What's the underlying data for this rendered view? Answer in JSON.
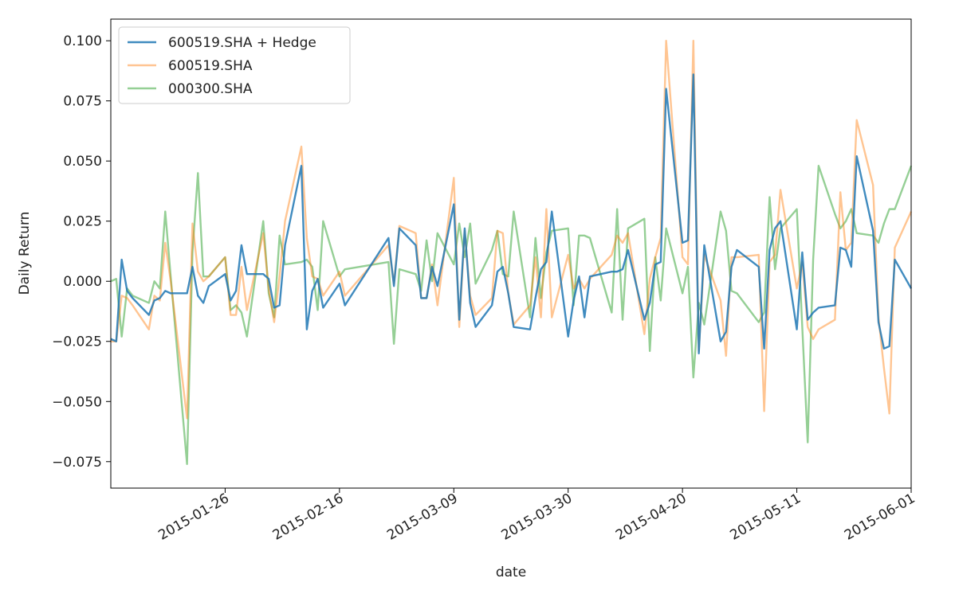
{
  "chart_data": {
    "type": "line",
    "xlabel": "date",
    "ylabel": "Daily Return",
    "xlim": [
      "2015-01-05",
      "2015-06-01"
    ],
    "ylim": [
      -0.086,
      0.109
    ],
    "x_ticks": [
      "2015-01-26",
      "2015-02-16",
      "2015-03-09",
      "2015-03-30",
      "2015-04-20",
      "2015-05-11",
      "2015-06-01"
    ],
    "y_ticks": [
      -0.075,
      -0.05,
      -0.025,
      0.0,
      0.025,
      0.05,
      0.075,
      0.1
    ],
    "y_tick_labels": [
      "−0.075",
      "−0.050",
      "−0.025",
      "0.000",
      "0.025",
      "0.050",
      "0.075",
      "0.100"
    ],
    "grid": false,
    "legend_position": "top-left",
    "dates": [
      "2015-01-05",
      "2015-01-06",
      "2015-01-07",
      "2015-01-08",
      "2015-01-09",
      "2015-01-12",
      "2015-01-13",
      "2015-01-14",
      "2015-01-15",
      "2015-01-16",
      "2015-01-19",
      "2015-01-20",
      "2015-01-21",
      "2015-01-22",
      "2015-01-23",
      "2015-01-26",
      "2015-01-27",
      "2015-01-28",
      "2015-01-29",
      "2015-01-30",
      "2015-02-02",
      "2015-02-03",
      "2015-02-04",
      "2015-02-05",
      "2015-02-06",
      "2015-02-09",
      "2015-02-10",
      "2015-02-11",
      "2015-02-12",
      "2015-02-13",
      "2015-02-16",
      "2015-02-17",
      "2015-02-25",
      "2015-02-26",
      "2015-02-27",
      "2015-03-02",
      "2015-03-03",
      "2015-03-04",
      "2015-03-05",
      "2015-03-06",
      "2015-03-09",
      "2015-03-10",
      "2015-03-11",
      "2015-03-12",
      "2015-03-13",
      "2015-03-16",
      "2015-03-17",
      "2015-03-18",
      "2015-03-19",
      "2015-03-20",
      "2015-03-23",
      "2015-03-24",
      "2015-03-25",
      "2015-03-26",
      "2015-03-27",
      "2015-03-30",
      "2015-03-31",
      "2015-04-01",
      "2015-04-02",
      "2015-04-03",
      "2015-04-07",
      "2015-04-08",
      "2015-04-09",
      "2015-04-10",
      "2015-04-13",
      "2015-04-14",
      "2015-04-15",
      "2015-04-16",
      "2015-04-17",
      "2015-04-20",
      "2015-04-21",
      "2015-04-22",
      "2015-04-23",
      "2015-04-24",
      "2015-04-27",
      "2015-04-28",
      "2015-04-29",
      "2015-04-30",
      "2015-05-04",
      "2015-05-05",
      "2015-05-06",
      "2015-05-07",
      "2015-05-08",
      "2015-05-11",
      "2015-05-12",
      "2015-05-13",
      "2015-05-14",
      "2015-05-15",
      "2015-05-18",
      "2015-05-19",
      "2015-05-20",
      "2015-05-21",
      "2015-05-22",
      "2015-05-25",
      "2015-05-26",
      "2015-05-27",
      "2015-05-28",
      "2015-05-29",
      "2015-06-01"
    ],
    "series": [
      {
        "name": "600519.SHA + Hedge",
        "color": "#1f77b4",
        "opacity": 0.85,
        "values": [
          -0.024,
          -0.025,
          0.009,
          -0.004,
          -0.007,
          -0.014,
          -0.008,
          -0.007,
          -0.004,
          -0.005,
          -0.005,
          0.006,
          -0.006,
          -0.009,
          -0.002,
          0.003,
          -0.008,
          -0.004,
          0.015,
          0.003,
          0.003,
          0.001,
          -0.011,
          -0.01,
          0.015,
          0.048,
          -0.02,
          -0.004,
          0.001,
          -0.011,
          -0.001,
          -0.01,
          0.018,
          -0.002,
          0.022,
          0.015,
          -0.007,
          -0.007,
          0.006,
          -0.002,
          0.032,
          -0.016,
          0.022,
          -0.009,
          -0.019,
          -0.01,
          0.004,
          0.006,
          -0.005,
          -0.019,
          -0.02,
          -0.007,
          0.005,
          0.008,
          0.029,
          -0.023,
          -0.008,
          0.002,
          -0.015,
          0.002,
          0.004,
          0.004,
          0.005,
          0.013,
          -0.016,
          -0.009,
          0.007,
          0.008,
          0.08,
          0.016,
          0.017,
          0.086,
          -0.03,
          0.015,
          -0.025,
          -0.021,
          0.006,
          0.013,
          0.006,
          -0.028,
          0.013,
          0.022,
          0.025,
          -0.02,
          0.012,
          -0.016,
          -0.013,
          -0.011,
          -0.01,
          0.014,
          0.013,
          0.006,
          0.052,
          0.021,
          -0.017,
          -0.028,
          -0.027,
          0.009,
          -0.003
        ]
      },
      {
        "name": "600519.SHA",
        "color": "#ff7f0e",
        "opacity": 0.45,
        "values": [
          -0.025,
          -0.025,
          -0.006,
          -0.007,
          -0.01,
          -0.02,
          -0.006,
          -0.008,
          0.016,
          0.0,
          -0.057,
          0.024,
          0.004,
          0.0,
          0.002,
          0.01,
          -0.014,
          -0.014,
          0.006,
          -0.012,
          0.02,
          -0.003,
          -0.017,
          0.002,
          0.025,
          0.056,
          0.018,
          0.002,
          0.001,
          -0.006,
          0.004,
          -0.006,
          0.015,
          -0.001,
          0.023,
          0.02,
          -0.007,
          -0.007,
          0.007,
          -0.01,
          0.043,
          -0.019,
          0.021,
          -0.006,
          -0.014,
          -0.007,
          0.021,
          0.02,
          -0.005,
          -0.018,
          -0.01,
          0.01,
          -0.015,
          0.03,
          -0.015,
          0.011,
          -0.003,
          0.001,
          -0.003,
          0.001,
          0.011,
          0.019,
          0.016,
          0.02,
          -0.022,
          0.001,
          0.01,
          0.018,
          0.1,
          0.01,
          0.007,
          0.1,
          -0.029,
          0.011,
          -0.008,
          -0.031,
          0.01,
          0.01,
          0.011,
          -0.054,
          0.008,
          0.011,
          0.038,
          -0.003,
          0.008,
          -0.019,
          -0.024,
          -0.02,
          -0.016,
          0.037,
          0.013,
          0.016,
          0.067,
          0.04,
          -0.015,
          -0.036,
          -0.055,
          0.014,
          0.029
        ]
      },
      {
        "name": "000300.SHA",
        "color": "#2ca02c",
        "opacity": 0.5,
        "values": [
          0.0,
          0.001,
          -0.023,
          -0.003,
          -0.006,
          -0.009,
          0.0,
          -0.003,
          0.029,
          0.002,
          -0.076,
          0.012,
          0.045,
          0.002,
          0.002,
          0.01,
          -0.012,
          -0.01,
          -0.013,
          -0.023,
          0.025,
          -0.005,
          -0.015,
          0.019,
          0.007,
          0.008,
          0.009,
          0.006,
          -0.012,
          0.025,
          0.002,
          0.005,
          0.008,
          -0.026,
          0.005,
          0.003,
          -0.004,
          0.017,
          0.0,
          0.02,
          0.007,
          0.024,
          0.01,
          0.024,
          -0.001,
          0.013,
          0.021,
          0.003,
          0.002,
          0.029,
          -0.015,
          0.018,
          -0.007,
          0.012,
          0.021,
          0.022,
          -0.01,
          0.019,
          0.019,
          0.018,
          -0.013,
          0.03,
          -0.016,
          0.022,
          0.026,
          -0.029,
          0.01,
          -0.008,
          0.022,
          -0.005,
          0.006,
          -0.04,
          -0.009,
          -0.018,
          0.029,
          0.021,
          -0.004,
          -0.005,
          -0.017,
          -0.013,
          0.035,
          0.005,
          0.022,
          0.03,
          -0.019,
          -0.067,
          0.009,
          0.048,
          0.028,
          0.022,
          0.025,
          0.03,
          0.02,
          0.019,
          0.016,
          0.024,
          0.03,
          0.03,
          0.048
        ]
      }
    ]
  }
}
